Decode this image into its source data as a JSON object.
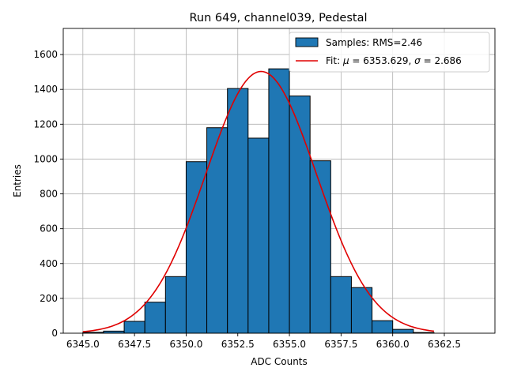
{
  "chart_data": {
    "type": "bar",
    "title": "Run 649, channel039, Pedestal",
    "xlabel": "ADC Counts",
    "ylabel": "Entries",
    "xlim": [
      6344.05,
      6364.95
    ],
    "ylim": [
      0,
      1750
    ],
    "x_ticks": [
      6345.0,
      6347.5,
      6350.0,
      6352.5,
      6355.0,
      6357.5,
      6360.0,
      6362.5
    ],
    "x_tick_labels": [
      "6345.0",
      "6347.5",
      "6350.0",
      "6352.5",
      "6355.0",
      "6357.5",
      "6360.0",
      "6362.5"
    ],
    "y_ticks": [
      0,
      200,
      400,
      600,
      800,
      1000,
      1200,
      1400,
      1600
    ],
    "y_tick_labels": [
      "0",
      "200",
      "400",
      "600",
      "800",
      "1000",
      "1200",
      "1400",
      "1600"
    ],
    "grid": true,
    "legend_position": "top-right",
    "histogram": {
      "name": "Samples: RMS=2.46",
      "color": "#1f77b4",
      "edgecolor": "#000000",
      "bins": [
        {
          "x0": 6345,
          "x1": 6346,
          "count": 5
        },
        {
          "x0": 6346,
          "x1": 6347,
          "count": 12
        },
        {
          "x0": 6347,
          "x1": 6348,
          "count": 68
        },
        {
          "x0": 6348,
          "x1": 6349,
          "count": 178
        },
        {
          "x0": 6349,
          "x1": 6350,
          "count": 325
        },
        {
          "x0": 6350,
          "x1": 6351,
          "count": 985
        },
        {
          "x0": 6351,
          "x1": 6352,
          "count": 1180
        },
        {
          "x0": 6352,
          "x1": 6353,
          "count": 1405
        },
        {
          "x0": 6353,
          "x1": 6354,
          "count": 1120
        },
        {
          "x0": 6354,
          "x1": 6355,
          "count": 1518
        },
        {
          "x0": 6355,
          "x1": 6356,
          "count": 1362
        },
        {
          "x0": 6356,
          "x1": 6357,
          "count": 990
        },
        {
          "x0": 6357,
          "x1": 6358,
          "count": 325
        },
        {
          "x0": 6358,
          "x1": 6359,
          "count": 262
        },
        {
          "x0": 6359,
          "x1": 6360,
          "count": 72
        },
        {
          "x0": 6360,
          "x1": 6361,
          "count": 22
        },
        {
          "x0": 6361,
          "x1": 6362,
          "count": 4
        }
      ]
    },
    "fit": {
      "name": "Fit: μ = 6353.629, σ = 2.686",
      "name_parts": {
        "prefix": "Fit: ",
        "mu_symbol": "μ",
        "mu_text": " = 6353.629, ",
        "sigma_symbol": "σ",
        "sigma_text": " = 2.686"
      },
      "type": "gaussian",
      "color": "#e00000",
      "mu": 6353.629,
      "sigma": 2.686,
      "amplitude": 1503,
      "x_range": [
        6345.0,
        6362.0
      ]
    }
  }
}
